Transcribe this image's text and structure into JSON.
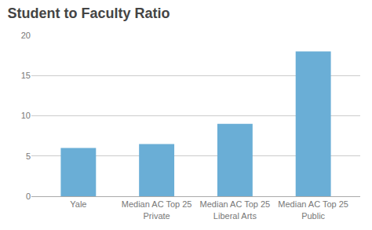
{
  "chart_data": {
    "type": "bar",
    "title": "Student to Faculty Ratio",
    "categories": [
      "Yale",
      "Median AC Top 25\nPrivate",
      "Median AC Top 25\nLiberal Arts",
      "Median AC Top 25\nPublic"
    ],
    "values": [
      6.0,
      6.5,
      9.0,
      18.0
    ],
    "color": "#6aaed6",
    "ylim": [
      0,
      20
    ],
    "yticks": [
      0,
      5,
      10,
      15,
      20
    ],
    "grid": true
  }
}
